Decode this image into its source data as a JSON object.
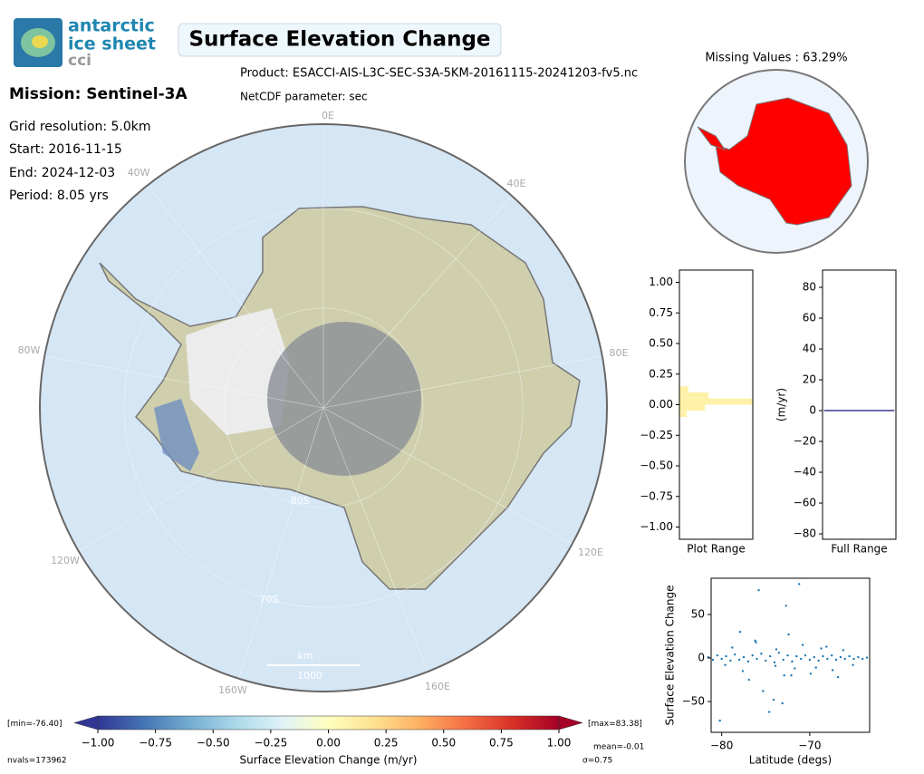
{
  "logo": {
    "line1": "antarctic",
    "line2": "ice sheet",
    "line3": "cci"
  },
  "title": "Surface Elevation Change",
  "product": "Product: ESACCI-AIS-L3C-SEC-S3A-5KM-20161115-20241203-fv5.nc",
  "parameter": "NetCDF parameter: sec",
  "mission": "Mission: Sentinel-3A",
  "info": [
    "Grid resolution: 5.0km",
    "Start: 2016-11-15",
    "End: 2024-12-03",
    "Period: 8.05 yrs"
  ],
  "map": {
    "lon_labels": [
      "0E",
      "40E",
      "80E",
      "120E",
      "160E",
      "160W",
      "120W",
      "80W",
      "40W"
    ],
    "lat_labels": [
      "80S",
      "70S"
    ],
    "scale_unit": "km",
    "scale_value": "1000"
  },
  "missing": {
    "title": "Missing Values : 63.29%"
  },
  "chart_data": [
    {
      "type": "colorbar",
      "xlabel": "Surface Elevation Change (m/yr)",
      "xlim": [
        -1,
        1
      ],
      "xticks": [
        {
          "value": -1,
          "label": "−1.00"
        },
        {
          "value": -0.75,
          "label": "−0.75"
        },
        {
          "value": -0.5,
          "label": "−0.50"
        },
        {
          "value": -0.25,
          "label": "−0.25"
        },
        {
          "value": 0,
          "label": "0.00"
        },
        {
          "value": 0.25,
          "label": "0.25"
        },
        {
          "value": 0.5,
          "label": "0.50"
        },
        {
          "value": 0.75,
          "label": "0.75"
        },
        {
          "value": 1,
          "label": "1.00"
        }
      ],
      "colors": [
        "#313695",
        "#4575b4",
        "#74add1",
        "#abd9e9",
        "#e0f3f8",
        "#ffffbf",
        "#fee090",
        "#fdae61",
        "#f46d43",
        "#d73027",
        "#a50026"
      ],
      "min_label": "[min=-76.40]",
      "max_label": "[max=83.38]",
      "nvals": "nvals=173962",
      "mean": "mean=-0.01",
      "sigma": "σ=0.75"
    },
    {
      "type": "hist_h",
      "xlabel": "Plot Range",
      "ylim": [
        -1.1,
        1.1
      ],
      "xlim": [
        0,
        1
      ],
      "color": "#fff2a8",
      "yticks": [
        {
          "value": 1,
          "label": "1.00"
        },
        0.75,
        {
          "value": 0.5,
          "label": "0.50"
        },
        0.25,
        {
          "value": 0,
          "label": "0.00"
        },
        {
          "value": -0.25,
          "label": "−0.25"
        },
        {
          "value": -0.5,
          "label": "−0.50"
        },
        {
          "value": -0.75,
          "label": "−0.75"
        },
        {
          "value": -1,
          "label": "−1.00"
        }
      ],
      "bins": [
        -0.1,
        -0.05,
        0,
        0.05,
        0.1,
        0.15
      ],
      "counts": [
        0.1,
        0.35,
        1.0,
        0.4,
        0.12
      ]
    },
    {
      "type": "line",
      "xlabel": "Full Range",
      "ylabel": "(m/yr)",
      "xlim": [
        0,
        1
      ],
      "ylim": [
        -83.5,
        91.2
      ],
      "color": "#3b3b8f",
      "yticks": [
        80,
        60,
        40,
        20,
        0,
        {
          "value": -20,
          "label": "−20"
        },
        {
          "value": -40,
          "label": "−40"
        },
        {
          "value": -60,
          "label": "−60"
        },
        {
          "value": -80,
          "label": "−80"
        }
      ],
      "x": [
        0.02,
        0.98
      ],
      "values": [
        0,
        0
      ]
    },
    {
      "type": "scatter",
      "xlabel": "Latitude (degs)",
      "ylabel": "Surface Elevation Change",
      "color": "#1f77b4",
      "xlim": [
        -81.2,
        -63.2
      ],
      "ylim": [
        -85.4,
        91.7
      ],
      "xticks": [
        {
          "value": -80,
          "label": "−80"
        },
        {
          "value": -70,
          "label": "−70"
        }
      ],
      "yticks": [
        50,
        0,
        {
          "value": -50,
          "label": "−50"
        }
      ],
      "x": [
        -81.5,
        -81,
        -80.5,
        -80,
        -79.5,
        -79,
        -78.5,
        -78,
        -77.5,
        -77,
        -76.5,
        -76,
        -75.5,
        -75,
        -74.5,
        -74,
        -73.5,
        -73,
        -72.5,
        -72,
        -71.5,
        -71,
        -70.5,
        -70,
        -69.5,
        -69,
        -68.5,
        -68,
        -67.5,
        -67,
        -66.5,
        -66,
        -65.5,
        -65,
        -64.5,
        -64,
        -63.5,
        -78.8,
        -77.6,
        -76.2,
        -75.3,
        -74.6,
        -73.8,
        -72.9,
        -72.4,
        -71.7,
        -70.8,
        -69.9,
        -68.7,
        -67.4,
        -66.2,
        -65.1,
        -77.9,
        -76.9,
        -75.8,
        -74.1,
        -73.1,
        -72.1,
        -71.2,
        -69.3,
        -68.1,
        -66.8,
        -79.6,
        -80.2,
        -76.1,
        -73.9,
        -72.7
      ],
      "values": [
        1,
        -2,
        3,
        -1,
        2,
        -3,
        4,
        -2,
        1,
        -4,
        3,
        -1,
        5,
        -3,
        2,
        -5,
        6,
        -2,
        3,
        -4,
        2,
        -1,
        3,
        -2,
        1,
        -3,
        2,
        -1,
        3,
        -2,
        1,
        -1,
        2,
        -1,
        1,
        -1,
        0.5,
        12,
        -15,
        20,
        -38,
        -62,
        10,
        -20,
        27,
        -12,
        15,
        -18,
        11,
        -14,
        9,
        -8,
        30,
        -25,
        78,
        -48,
        -52,
        -20,
        85,
        -11,
        13,
        -22,
        -8,
        -72,
        18,
        -9,
        60
      ]
    }
  ]
}
